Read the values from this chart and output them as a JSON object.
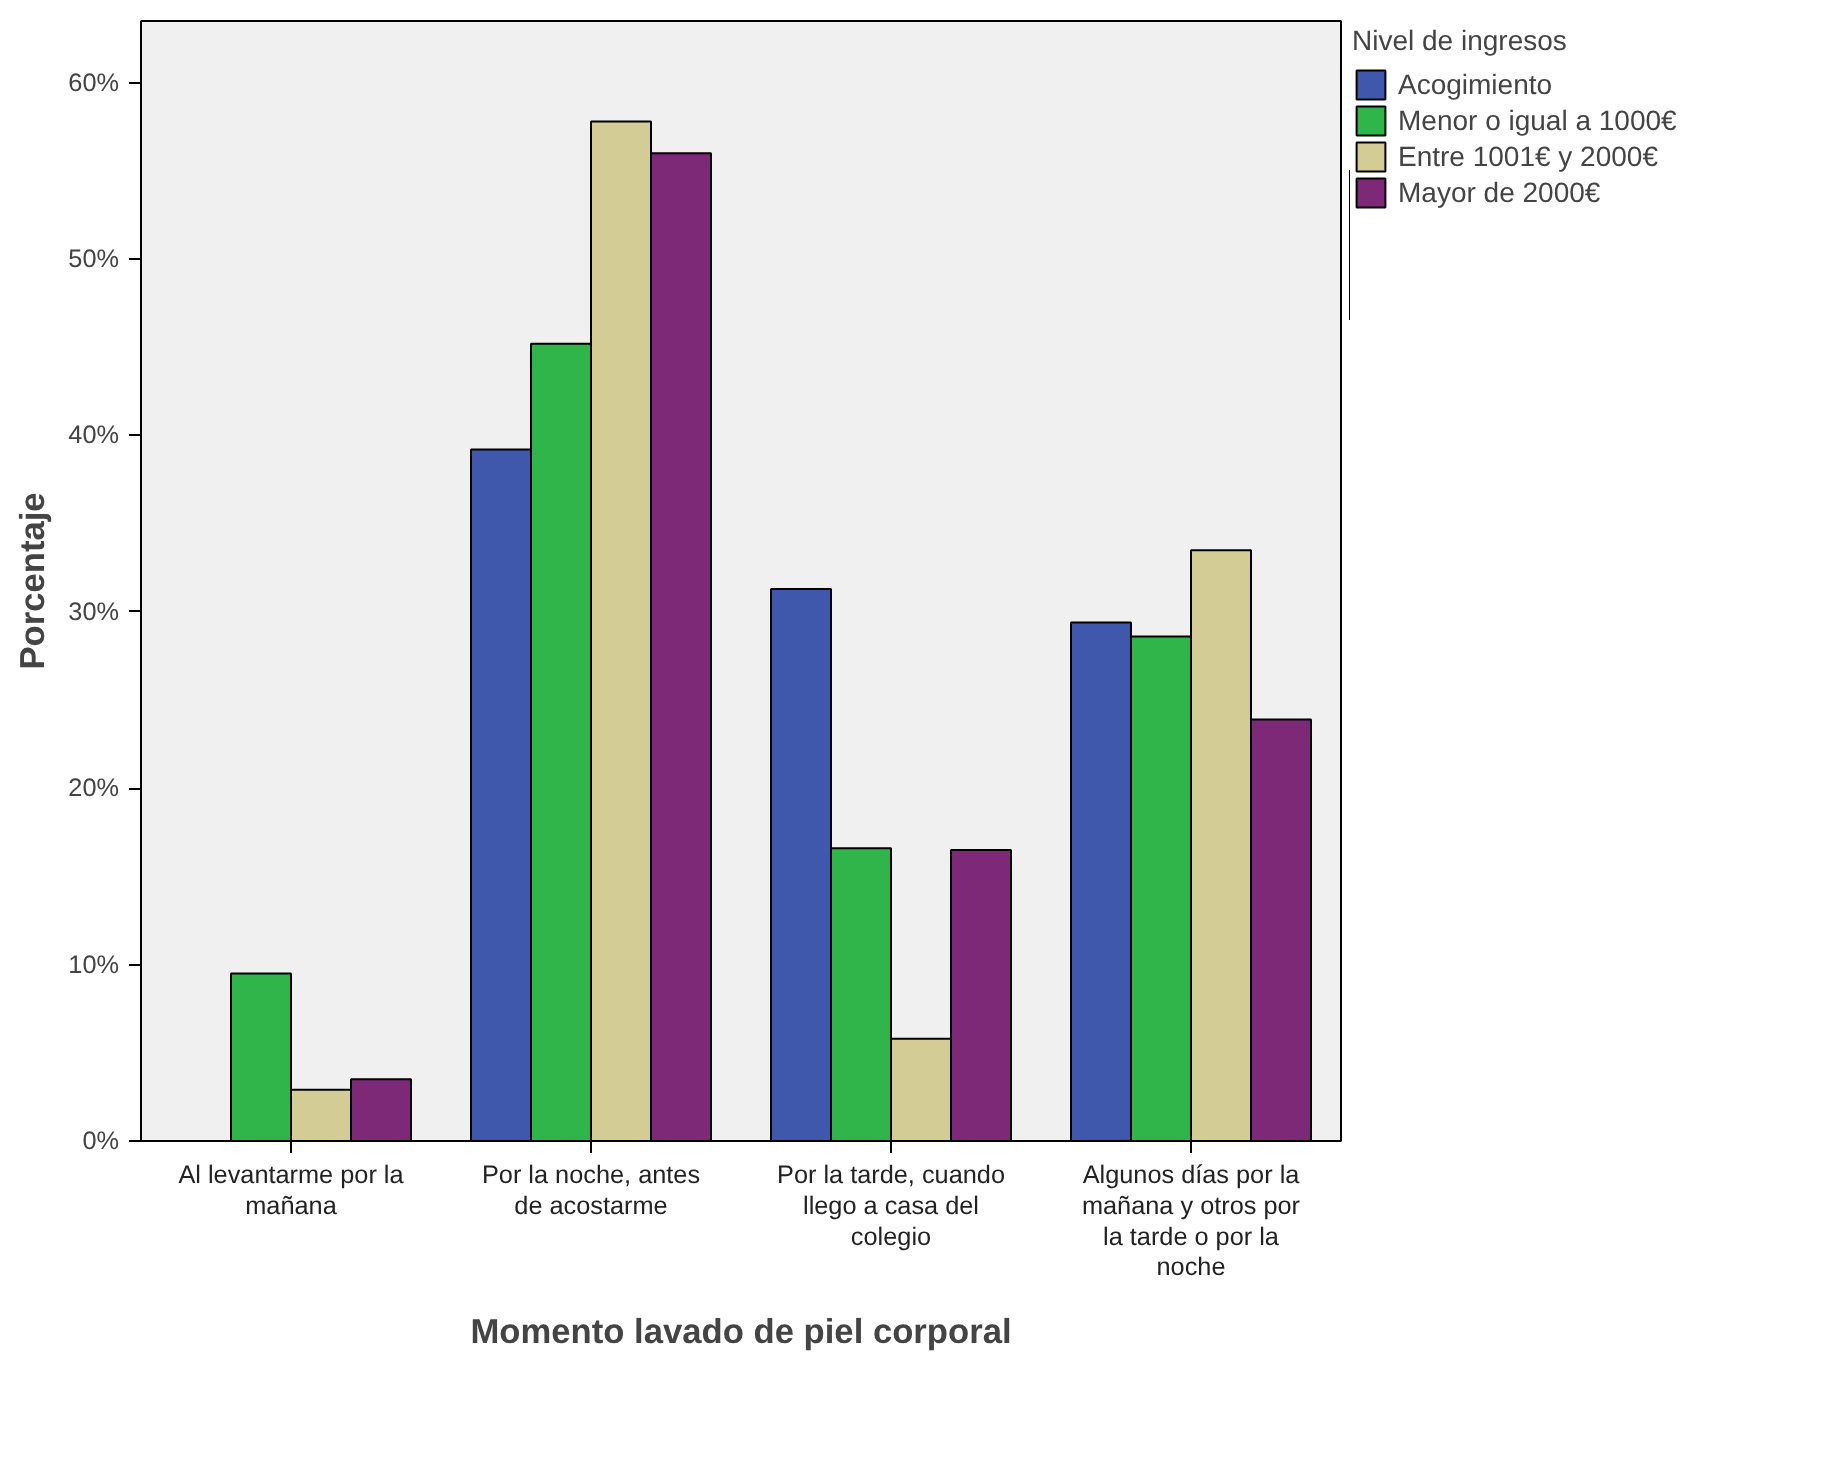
{
  "chart_data": {
    "type": "bar",
    "xlabel": "Momento lavado de piel corporal",
    "ylabel": "Porcentaje",
    "legend_title": "Nivel de ingresos",
    "categories": [
      "Al levantarme por la mañana",
      "Por la noche, antes de acostarme",
      "Por la tarde, cuando llego a casa del colegio",
      "Algunos días por la mañana y otros por la tarde o por la noche"
    ],
    "series": [
      {
        "name": "Acogimiento",
        "color": "#3f58ac",
        "values": [
          null,
          39.2,
          31.3,
          29.4
        ]
      },
      {
        "name": "Menor o igual a 1000€",
        "color": "#30b54a",
        "values": [
          9.5,
          45.2,
          16.6,
          28.6
        ]
      },
      {
        "name": "Entre 1001€ y 2000€",
        "color": "#d3cd95",
        "values": [
          2.9,
          57.8,
          5.8,
          33.5
        ]
      },
      {
        "name": "Mayor de 2000€",
        "color": "#7e2878",
        "values": [
          3.5,
          56.0,
          16.5,
          23.9
        ]
      }
    ],
    "ylim": [
      0,
      63.5
    ],
    "yticks": [
      {
        "value": 0,
        "label": "0%"
      },
      {
        "value": 10,
        "label": "10%"
      },
      {
        "value": 20,
        "label": "20%"
      },
      {
        "value": 30,
        "label": "30%"
      },
      {
        "value": 40,
        "label": "40%"
      },
      {
        "value": 50,
        "label": "50%"
      },
      {
        "value": 60,
        "label": "60%"
      }
    ],
    "grid": false,
    "legend": "right"
  }
}
